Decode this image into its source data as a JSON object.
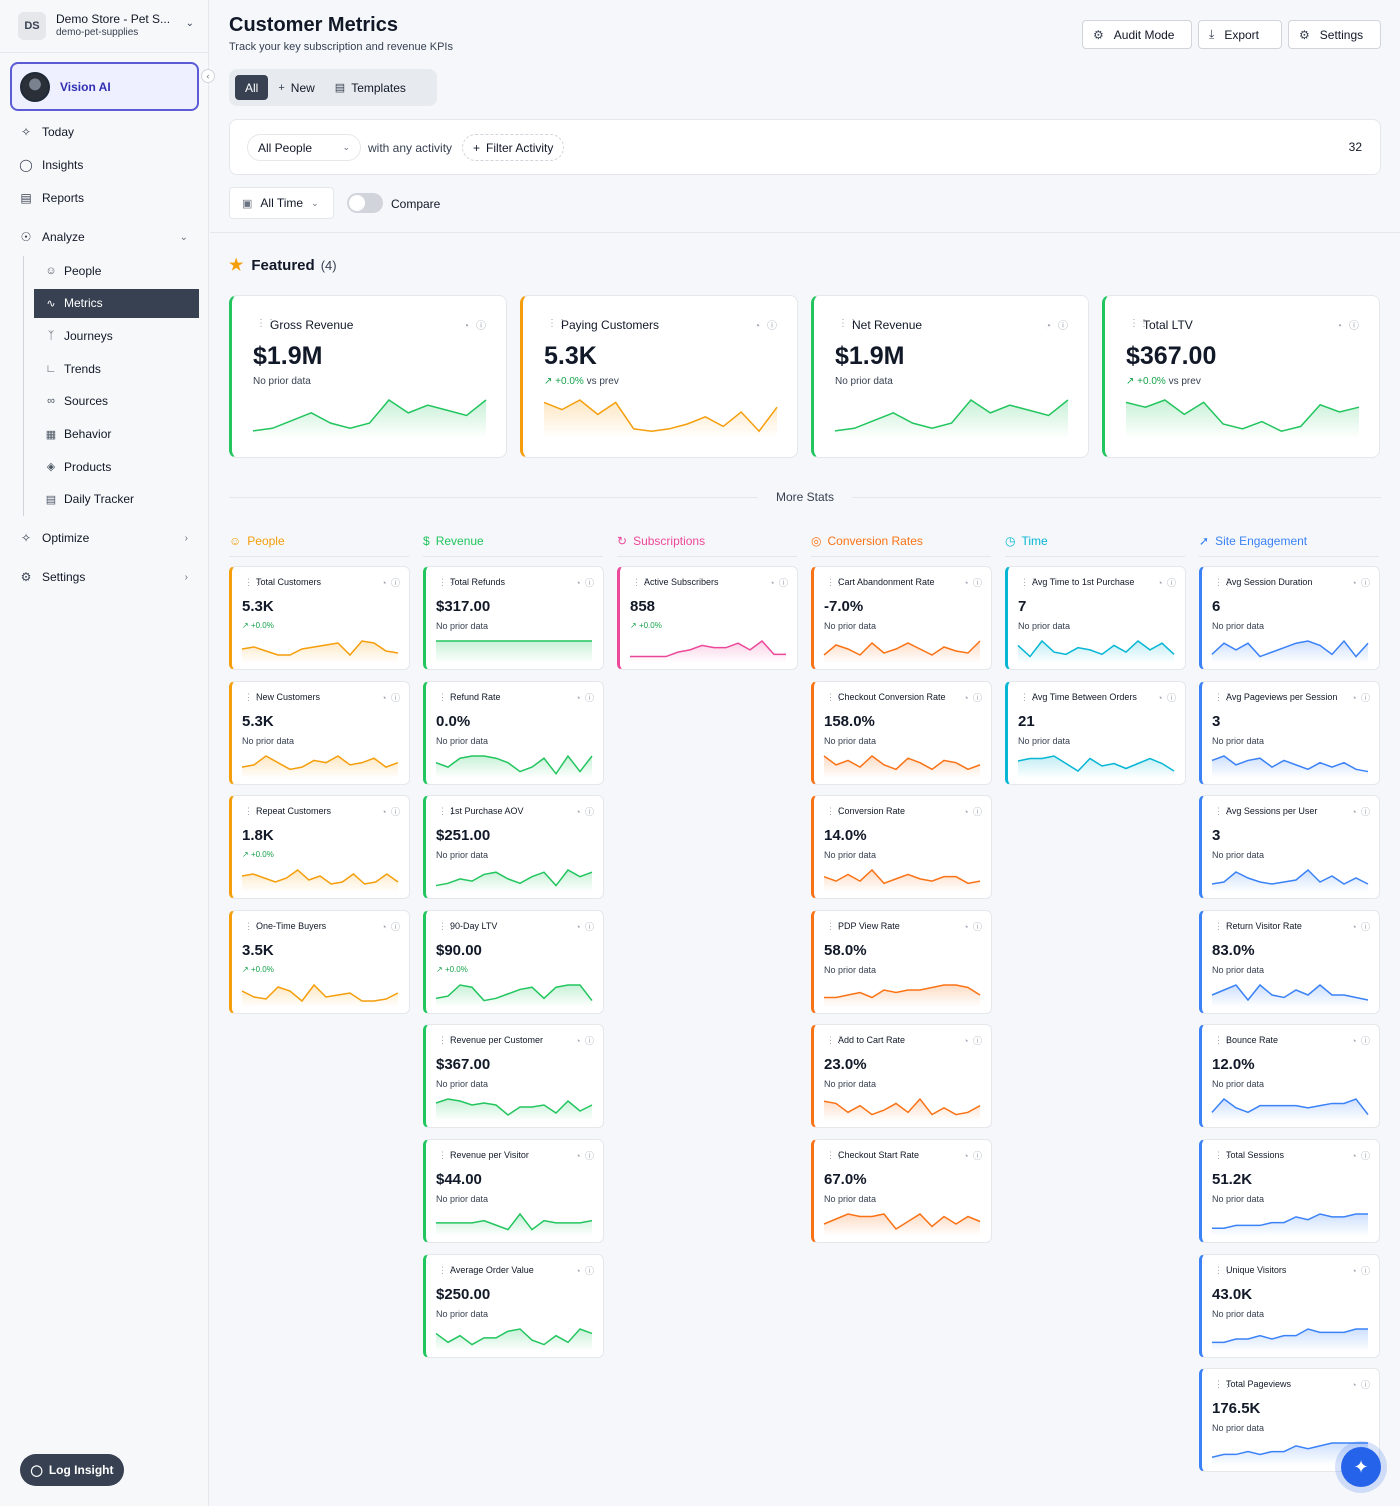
{
  "sidebar": {
    "store_initials": "DS",
    "store_name": "Demo Store - Pet S...",
    "store_slug": "demo-pet-supplies",
    "vision_label": "Vision AI",
    "nav": [
      {
        "label": "Today",
        "icon": "sparkle-icon"
      },
      {
        "label": "Insights",
        "icon": "lightbulb-icon"
      },
      {
        "label": "Reports",
        "icon": "document-icon"
      },
      {
        "label": "Analyze",
        "icon": "eye-icon"
      }
    ],
    "analyze_items": [
      {
        "label": "People",
        "icon": "users-icon"
      },
      {
        "label": "Metrics",
        "icon": "activity-icon"
      },
      {
        "label": "Journeys",
        "icon": "branch-icon"
      },
      {
        "label": "Trends",
        "icon": "chart-line-icon"
      },
      {
        "label": "Sources",
        "icon": "link-icon"
      },
      {
        "label": "Behavior",
        "icon": "layout-icon"
      },
      {
        "label": "Products",
        "icon": "box-icon"
      },
      {
        "label": "Daily Tracker",
        "icon": "table-icon"
      }
    ],
    "optimize_label": "Optimize",
    "settings_label": "Settings",
    "log_insight": "Log Insight"
  },
  "header": {
    "title": "Customer Metrics",
    "subtitle": "Track your key subscription and revenue KPIs",
    "audit_mode": "Audit Mode",
    "export": "Export",
    "settings": "Settings"
  },
  "tabs": {
    "all": "All",
    "new": "New",
    "templates": "Templates"
  },
  "filters": {
    "people": "All People",
    "activity_text": "with any activity",
    "filter_activity": "Filter Activity",
    "count": "32",
    "time": "All Time",
    "compare": "Compare"
  },
  "featured": {
    "label": "Featured",
    "count": "(4)",
    "cards": [
      {
        "title": "Gross Revenue",
        "value": "$1.9M",
        "sub": "No prior data",
        "delta": "",
        "color": "#22c55e",
        "spark": [
          2,
          3,
          6,
          9,
          5,
          3,
          5,
          14,
          9,
          12,
          10,
          8,
          14
        ]
      },
      {
        "title": "Paying Customers",
        "value": "5.3K",
        "sub": "vs prev",
        "delta": "+0.0%",
        "color": "#f59e0b",
        "spark": [
          14,
          11,
          15,
          9,
          14,
          3,
          2,
          3,
          5,
          8,
          4,
          10,
          2,
          12
        ]
      },
      {
        "title": "Net Revenue",
        "value": "$1.9M",
        "sub": "No prior data",
        "delta": "",
        "color": "#22c55e",
        "spark": [
          2,
          3,
          6,
          9,
          5,
          3,
          5,
          14,
          9,
          12,
          10,
          8,
          14
        ]
      },
      {
        "title": "Total LTV",
        "value": "$367.00",
        "sub": "vs prev",
        "delta": "+0.0%",
        "color": "#22c55e",
        "spark": [
          14,
          12,
          15,
          9,
          14,
          5,
          3,
          6,
          2,
          4,
          13,
          10,
          12
        ]
      }
    ]
  },
  "more_stats": "More Stats",
  "columns": [
    {
      "name": "People",
      "color": "#f59e0b",
      "icon": "users-icon",
      "cards": [
        {
          "title": "Total Customers",
          "value": "5.3K",
          "sub": "+0.0%",
          "pos": true,
          "spark": [
            6,
            7,
            5,
            3,
            3,
            6,
            7,
            8,
            9,
            3,
            10,
            9,
            5,
            4
          ]
        },
        {
          "title": "New Customers",
          "value": "5.3K",
          "sub": "No prior data",
          "pos": false,
          "spark": [
            4,
            5,
            9,
            6,
            3,
            4,
            7,
            6,
            9,
            5,
            6,
            8,
            4,
            6
          ]
        },
        {
          "title": "Repeat Customers",
          "value": "1.8K",
          "sub": "+0.0%",
          "pos": true,
          "spark": [
            7,
            8,
            6,
            4,
            6,
            10,
            5,
            7,
            3,
            4,
            8,
            3,
            4,
            8,
            4
          ]
        },
        {
          "title": "One-Time Buyers",
          "value": "3.5K",
          "sub": "+0.0%",
          "pos": true,
          "spark": [
            7,
            4,
            3,
            9,
            7,
            2,
            10,
            4,
            5,
            6,
            2,
            2,
            3,
            6
          ]
        }
      ]
    },
    {
      "name": "Revenue",
      "color": "#22c55e",
      "icon": "dollar-icon",
      "cards": [
        {
          "title": "Total Refunds",
          "value": "$317.00",
          "sub": "No prior data",
          "pos": false,
          "spark": [
            1,
            1,
            1,
            1,
            1,
            1,
            1,
            1,
            1,
            1,
            1,
            1,
            1,
            1
          ]
        },
        {
          "title": "Refund Rate",
          "value": "0.0%",
          "sub": "No prior data",
          "pos": false,
          "spark": [
            6,
            4,
            8,
            9,
            9,
            8,
            6,
            2,
            4,
            8,
            1,
            9,
            2,
            9
          ]
        },
        {
          "title": "1st Purchase AOV",
          "value": "$251.00",
          "sub": "No prior data",
          "pos": false,
          "spark": [
            2,
            3,
            5,
            4,
            7,
            8,
            5,
            3,
            6,
            8,
            2,
            9,
            6,
            8
          ]
        },
        {
          "title": "90-Day LTV",
          "value": "$90.00",
          "sub": "+0.0%",
          "pos": true,
          "spark": [
            3,
            4,
            9,
            8,
            2,
            3,
            5,
            7,
            8,
            3,
            8,
            9,
            9,
            2
          ]
        },
        {
          "title": "Revenue per Customer",
          "value": "$367.00",
          "sub": "No prior data",
          "pos": false,
          "spark": [
            8,
            10,
            9,
            7,
            8,
            7,
            2,
            6,
            6,
            7,
            3,
            9,
            4,
            7
          ]
        },
        {
          "title": "Revenue per Visitor",
          "value": "$44.00",
          "sub": "No prior data",
          "pos": false,
          "spark": [
            5,
            5,
            5,
            5,
            6,
            4,
            2,
            9,
            2,
            6,
            5,
            5,
            5,
            6
          ]
        },
        {
          "title": "Average Order Value",
          "value": "$250.00",
          "sub": "No prior data",
          "pos": false,
          "spark": [
            7,
            3,
            6,
            2,
            5,
            5,
            8,
            9,
            4,
            2,
            6,
            3,
            9,
            7
          ]
        }
      ]
    },
    {
      "name": "Subscriptions",
      "color": "#ec4899",
      "icon": "refresh-icon",
      "cards": [
        {
          "title": "Active Subscribers",
          "value": "858",
          "sub": "+0.0%",
          "pos": true,
          "spark": [
            2,
            2,
            2,
            2,
            4,
            5,
            7,
            6,
            6,
            8,
            5,
            9,
            3,
            3
          ]
        }
      ]
    },
    {
      "name": "Conversion Rates",
      "color": "#f97316",
      "icon": "target-icon",
      "cards": [
        {
          "title": "Cart Abandonment Rate",
          "value": "-7.0%",
          "sub": "No prior data",
          "pos": false,
          "spark": [
            3,
            8,
            6,
            3,
            9,
            4,
            6,
            9,
            6,
            3,
            7,
            5,
            4,
            10
          ]
        },
        {
          "title": "Checkout Conversion Rate",
          "value": "158.0%",
          "sub": "No prior data",
          "pos": false,
          "spark": [
            9,
            5,
            7,
            4,
            9,
            5,
            3,
            8,
            6,
            3,
            7,
            6,
            3,
            5
          ]
        },
        {
          "title": "Conversion Rate",
          "value": "14.0%",
          "sub": "No prior data",
          "pos": false,
          "spark": [
            6,
            4,
            7,
            4,
            9,
            3,
            5,
            7,
            5,
            4,
            6,
            6,
            3,
            4
          ]
        },
        {
          "title": "PDP View Rate",
          "value": "58.0%",
          "sub": "No prior data",
          "pos": false,
          "spark": [
            3,
            3,
            4,
            5,
            3,
            6,
            5,
            6,
            6,
            7,
            8,
            8,
            7,
            4
          ]
        },
        {
          "title": "Add to Cart Rate",
          "value": "23.0%",
          "sub": "No prior data",
          "pos": false,
          "spark": [
            8,
            7,
            3,
            6,
            2,
            4,
            7,
            3,
            9,
            2,
            5,
            2,
            3,
            6
          ]
        },
        {
          "title": "Checkout Start Rate",
          "value": "67.0%",
          "sub": "No prior data",
          "pos": false,
          "spark": [
            4,
            6,
            8,
            7,
            7,
            8,
            2,
            5,
            8,
            3,
            7,
            4,
            7,
            5
          ]
        }
      ]
    },
    {
      "name": "Time",
      "color": "#06b6d4",
      "icon": "clock-icon",
      "cards": [
        {
          "title": "Avg Time to 1st Purchase",
          "value": "7",
          "sub": "No prior data",
          "pos": false,
          "spark": [
            7,
            2,
            9,
            4,
            3,
            6,
            5,
            3,
            7,
            4,
            9,
            5,
            8,
            3
          ]
        },
        {
          "title": "Avg Time Between Orders",
          "value": "21",
          "sub": "No prior data",
          "pos": false,
          "spark": [
            6,
            7,
            7,
            8,
            5,
            2,
            7,
            4,
            5,
            3,
            5,
            7,
            5,
            2
          ]
        }
      ]
    },
    {
      "name": "Site Engagement",
      "color": "#3b82f6",
      "icon": "cursor-icon",
      "cards": [
        {
          "title": "Avg Session Duration",
          "value": "6",
          "sub": "No prior data",
          "pos": false,
          "spark": [
            3,
            8,
            5,
            8,
            2,
            4,
            6,
            8,
            9,
            7,
            3,
            9,
            2,
            8
          ]
        },
        {
          "title": "Avg Pageviews per Session",
          "value": "3",
          "sub": "No prior data",
          "pos": false,
          "spark": [
            7,
            9,
            5,
            7,
            8,
            4,
            7,
            5,
            3,
            6,
            4,
            6,
            3,
            2
          ]
        },
        {
          "title": "Avg Sessions per User",
          "value": "3",
          "sub": "No prior data",
          "pos": false,
          "spark": [
            3,
            4,
            9,
            6,
            4,
            3,
            4,
            5,
            10,
            4,
            7,
            3,
            6,
            3
          ]
        },
        {
          "title": "Return Visitor Rate",
          "value": "83.0%",
          "sub": "No prior data",
          "pos": false,
          "spark": [
            4,
            6,
            8,
            2,
            8,
            4,
            3,
            6,
            4,
            8,
            4,
            4,
            3,
            2
          ]
        },
        {
          "title": "Bounce Rate",
          "value": "12.0%",
          "sub": "No prior data",
          "pos": false,
          "spark": [
            3,
            9,
            5,
            3,
            6,
            6,
            6,
            6,
            5,
            6,
            7,
            7,
            9,
            2
          ]
        },
        {
          "title": "Total Sessions",
          "value": "51.2K",
          "sub": "No prior data",
          "pos": false,
          "spark": [
            2,
            2,
            3,
            3,
            3,
            4,
            4,
            6,
            5,
            7,
            6,
            6,
            7,
            7
          ]
        },
        {
          "title": "Unique Visitors",
          "value": "43.0K",
          "sub": "No prior data",
          "pos": false,
          "spark": [
            2,
            2,
            3,
            3,
            4,
            3,
            4,
            4,
            6,
            5,
            5,
            5,
            6,
            6
          ]
        },
        {
          "title": "Total Pageviews",
          "value": "176.5K",
          "sub": "No prior data",
          "pos": false,
          "spark": [
            2,
            3,
            3,
            4,
            3,
            4,
            4,
            6,
            5,
            6,
            7,
            7,
            7,
            7
          ]
        }
      ]
    }
  ]
}
